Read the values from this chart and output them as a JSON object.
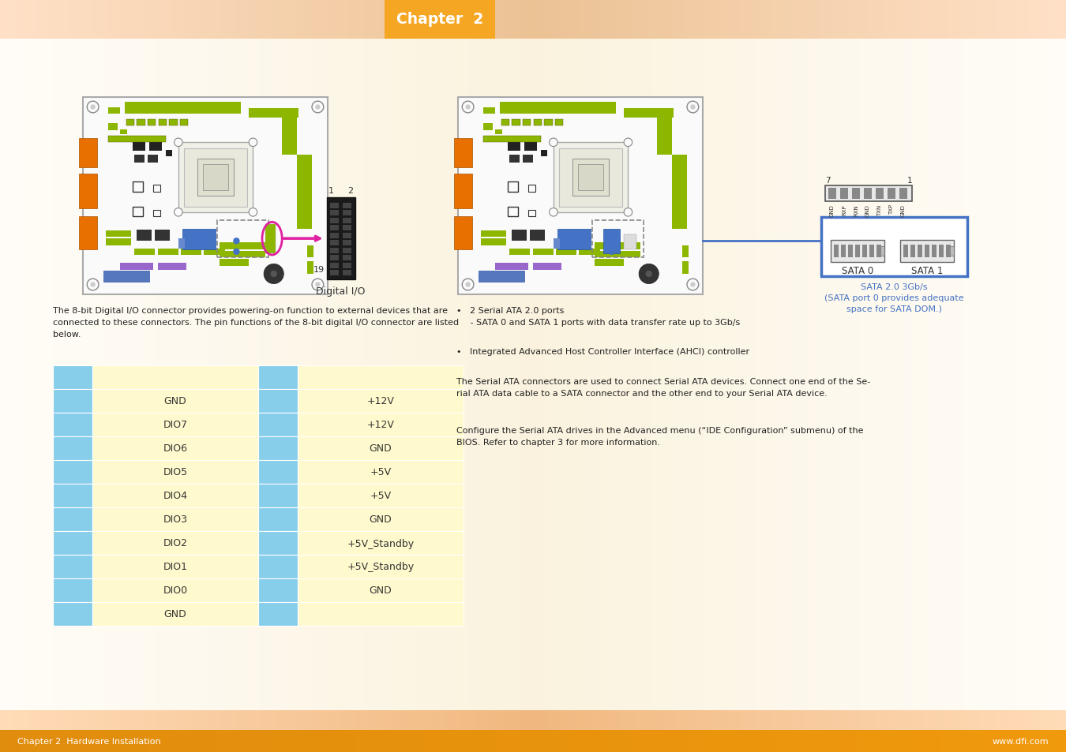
{
  "title_text": "Chapter  2",
  "title_bg": "#F5A623",
  "footer_left_text": "Chapter 2  Hardware Installation",
  "footer_right_text": "www.dfi.com",
  "footer_text_color": "#FFFFFF",
  "page_bg": "#FFFFFF",
  "left_desc": "The 8-bit Digital I/O connector provides powering-on function to external devices that are\nconnected to these connectors. The pin functions of the 8-bit digital I/O connector are listed\nbelow.",
  "right_desc1": "•   2 Serial ATA 2.0 ports\n     - SATA 0 and SATA 1 ports with data transfer rate up to 3Gb/s",
  "right_desc2": "•   Integrated Advanced Host Controller Interface (AHCI) controller",
  "right_desc3": "The Serial ATA connectors are used to connect Serial ATA devices. Connect one end of the Se-\nrial ATA data cable to a SATA connector and the other end to your Serial ATA device.",
  "right_desc4": "Configure the Serial ATA drives in the Advanced menu (“IDE Configuration” submenu) of the\nBIOS. Refer to chapter 3 for more information.",
  "sata_caption": "SATA 2.0 3Gb/s\n(SATA port 0 provides adequate\nspace for SATA DOM.)",
  "sata_caption_color": "#4472C4",
  "table_blue_bg": "#87CEEB",
  "table_yellow_bg": "#FFFACD",
  "left_col_labels": [
    "",
    "GND",
    "DIO7",
    "DIO6",
    "DIO5",
    "DIO4",
    "DIO3",
    "DIO2",
    "DIO1",
    "DIO0",
    "GND"
  ],
  "right_col_labels": [
    "",
    "+12V",
    "+12V",
    "GND",
    "+5V",
    "+5V",
    "GND",
    "+5V_Standby",
    "+5V_Standby",
    "GND",
    ""
  ],
  "digital_io_label": "Digital I/O",
  "connector_label_1": "1",
  "connector_label_2": "2",
  "connector_label_19": "19",
  "sata_label_0": "SATA 0",
  "sata_label_1": "SATA 1",
  "sata_pin_7": "7",
  "sata_pin_1": "1",
  "sata_pin_labels": [
    "GND",
    "RXP",
    "RXN",
    "GND",
    "TXN",
    "TXP",
    "GND"
  ],
  "board_bg": "#FFFFFF",
  "board_edge": "#999999",
  "pcb_green": "#8DB600",
  "pcb_dark_green": "#5A8000",
  "orange_conn": "#E87000",
  "body_gradient_color": "#FAEBD7"
}
